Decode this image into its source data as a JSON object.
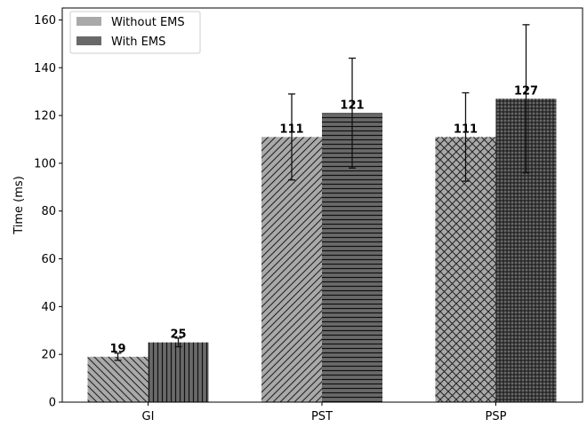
{
  "chart_data": {
    "type": "bar",
    "categories": [
      "GI",
      "PST",
      "PSP"
    ],
    "series": [
      {
        "name": "Without EMS",
        "values": [
          19,
          111,
          111
        ],
        "errors": [
          1.5,
          18,
          18.5
        ],
        "data_labels": [
          "19",
          "111",
          "111"
        ],
        "color": "#a9a9a9"
      },
      {
        "name": "With EMS",
        "values": [
          25,
          121,
          127
        ],
        "errors": [
          1.8,
          23,
          31
        ],
        "data_labels": [
          "25",
          "121",
          "127"
        ],
        "color": "#696969"
      }
    ],
    "ylabel": "Time (ms)",
    "ylim": [
      0,
      165
    ],
    "yticks": [
      "0",
      "20",
      "40",
      "60",
      "80",
      "100",
      "120",
      "140",
      "160"
    ],
    "grid": false,
    "legend_position": "top-left"
  }
}
